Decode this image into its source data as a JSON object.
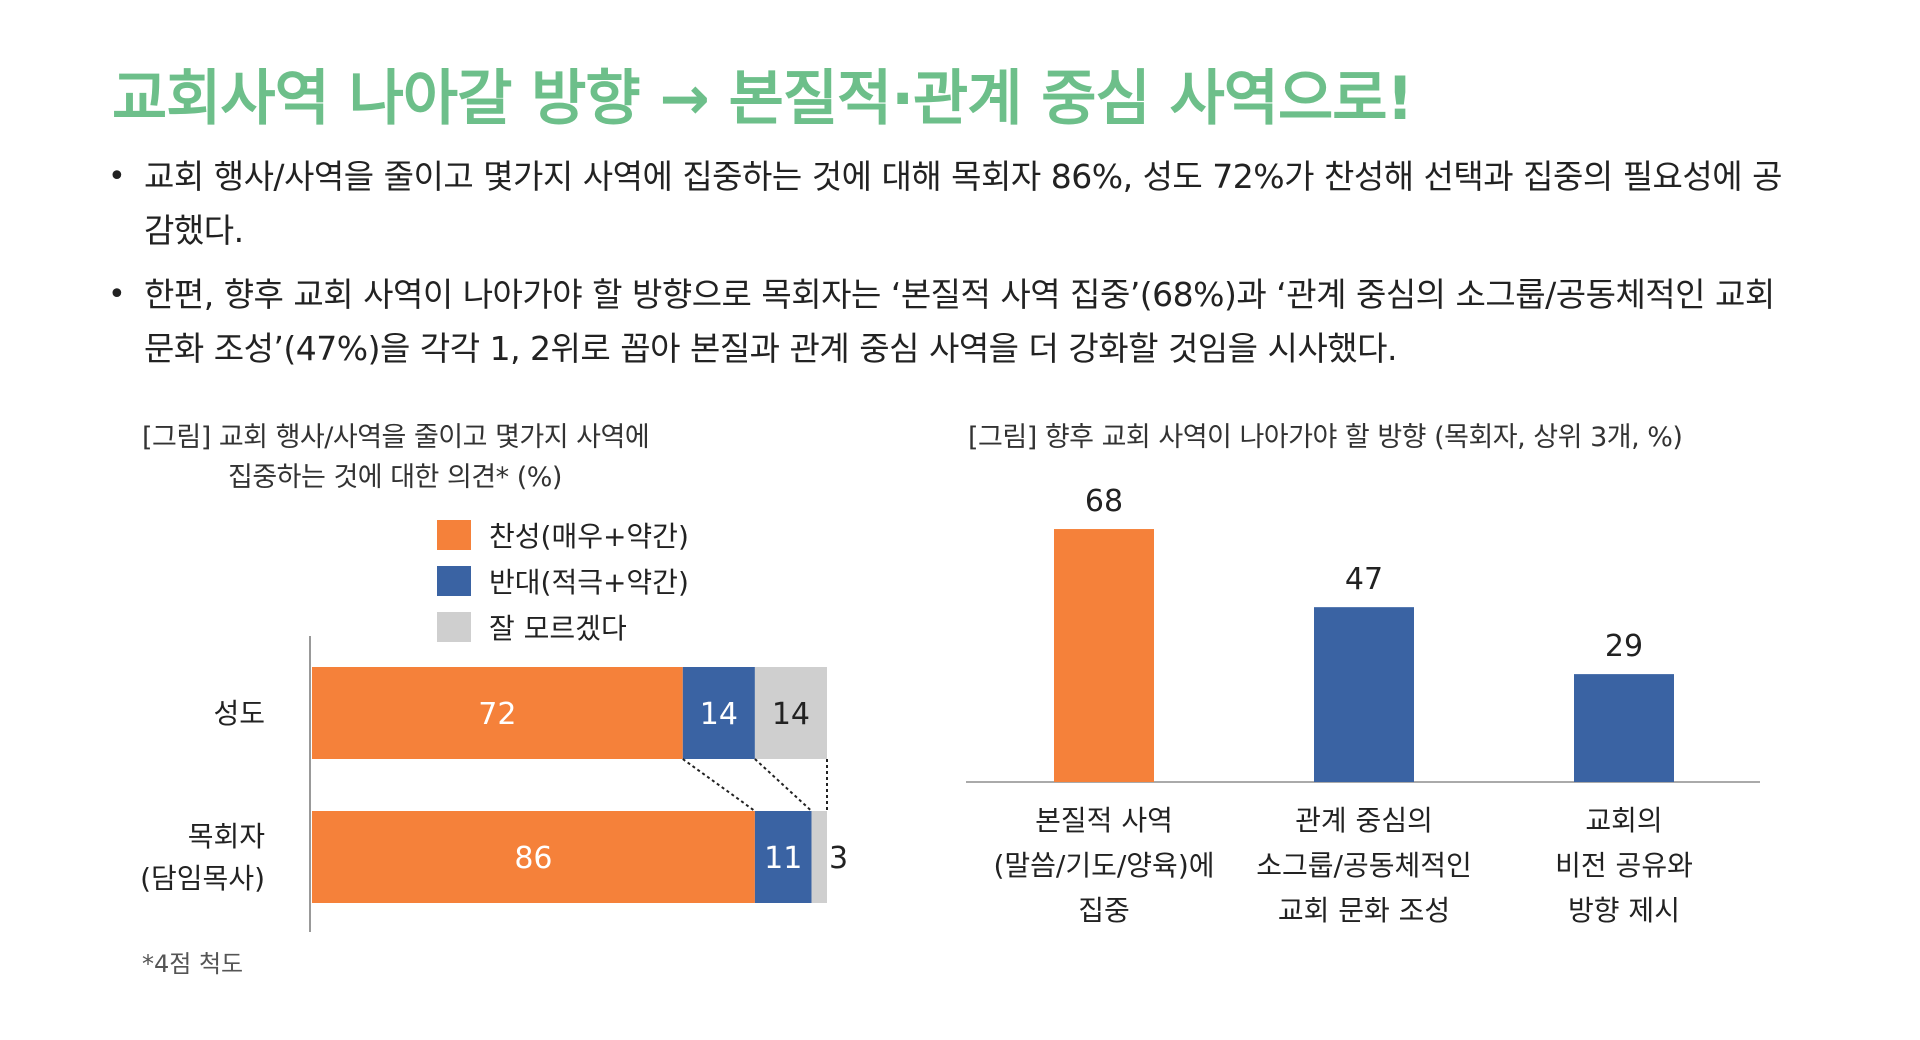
{
  "title": "교회사역 나아갈 방향 → 본질적·관계 중심 사역으로!",
  "bullets": [
    "교회 행사/사역을 줄이고 몇가지 사역에 집중하는 것에 대해 목회자 86%, 성도 72%가 찬성해 선택과 집중의 필요성에 공감했다.",
    "한편, 향후 교회 사역이 나아가야 할 방향으로 목회자는 ‘본질적 사역 집중’(68%)과 ‘관계 중심의 소그룹/공동체적인 교회 문화 조성’(47%)을 각각 1, 2위로 꼽아 본질과 관계 중심 사역을 더 강화할 것임을 시사했다."
  ],
  "left_chart_title_line1": "[그림] 교회 행사/사역을 줄이고 몇가지 사역에",
  "left_chart_title_line2": "집중하는 것에 대한 의견* (%)",
  "right_chart_title": "[그림] 향후 교회 사역이 나아가야 할 방향 (목회자, 상위 3개, %)",
  "footnote": "*4점 척도",
  "chart_data": [
    {
      "type": "bar",
      "orientation": "horizontal",
      "stacked": true,
      "categories": [
        "성도",
        "목회자\n(담임목사)"
      ],
      "series": [
        {
          "name": "찬성(매우+약간)",
          "values": [
            72,
            86
          ],
          "color": "#f5813a"
        },
        {
          "name": "반대(적극+약간)",
          "values": [
            14,
            11
          ],
          "color": "#3a63a3"
        },
        {
          "name": "잘 모르겠다",
          "values": [
            14,
            3
          ],
          "color": "#cfcfcf"
        }
      ],
      "xlim": [
        0,
        100
      ],
      "legend": "top",
      "grid": false
    },
    {
      "type": "bar",
      "orientation": "vertical",
      "categories": [
        "본질적 사역\n(말씀/기도/양육)에\n집중",
        "관계 중심의\n소그룹/공동체적인\n교회 문화 조성",
        "교회의\n비전 공유와\n방향 제시"
      ],
      "values": [
        68,
        47,
        29
      ],
      "colors": [
        "#f5813a",
        "#3a63a3",
        "#3a63a3"
      ],
      "ylim": [
        0,
        75
      ],
      "grid": false
    }
  ]
}
